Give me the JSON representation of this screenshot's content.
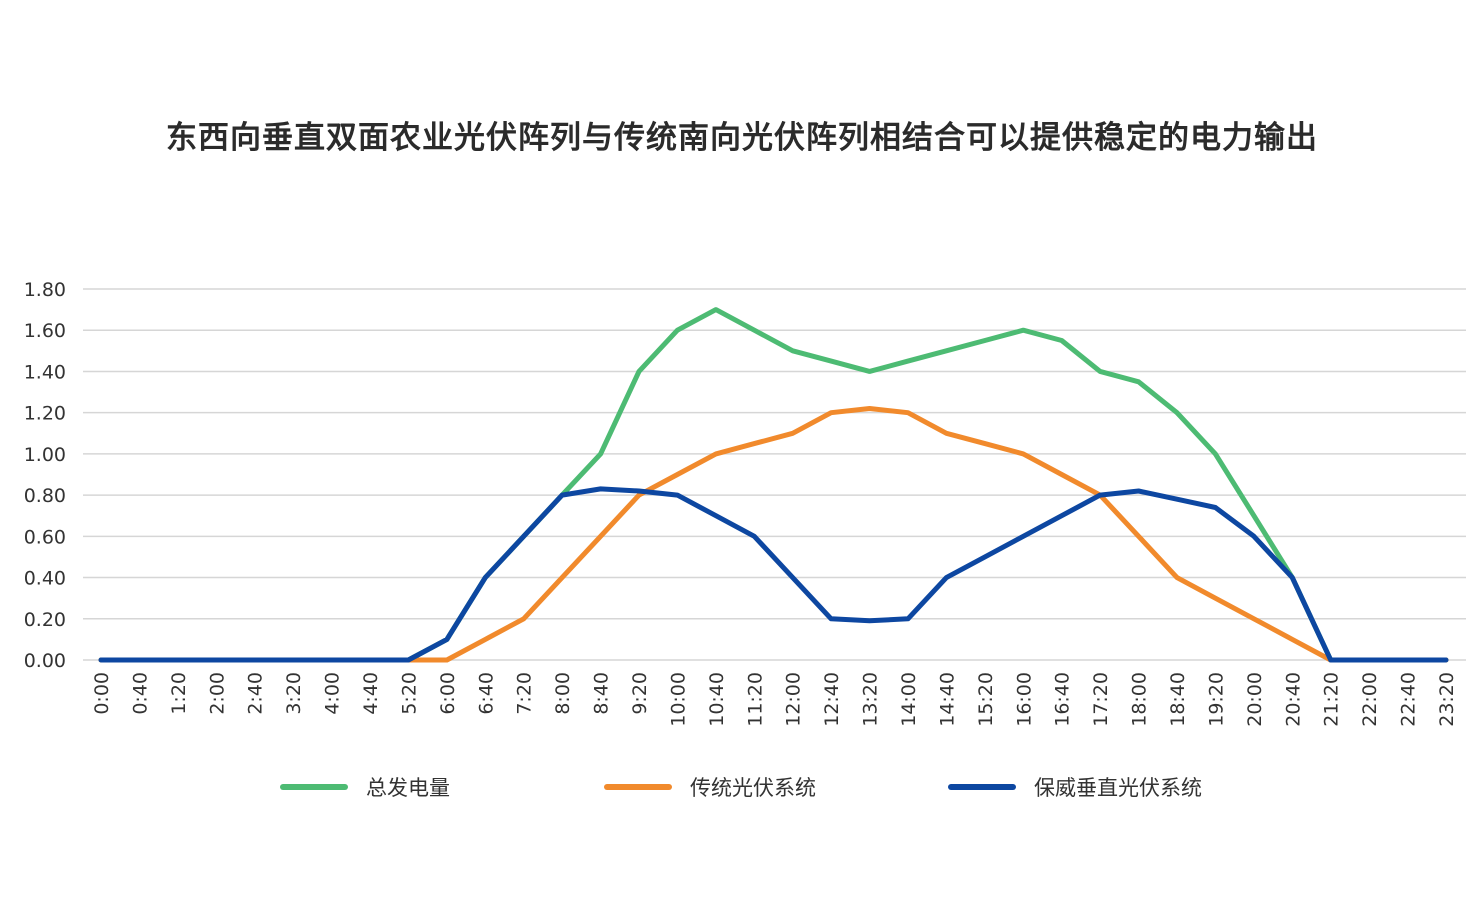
{
  "chart_data": {
    "type": "line",
    "title": "东西向垂直双面农业光伏阵列与传统南向光伏阵列相结合可以提供稳定的电力输出",
    "x": [
      "0:00",
      "0:40",
      "1:20",
      "2:00",
      "2:40",
      "3:20",
      "4:00",
      "4:40",
      "5:20",
      "6:00",
      "6:40",
      "7:20",
      "8:00",
      "8:40",
      "9:20",
      "10:00",
      "10:40",
      "11:20",
      "12:00",
      "12:40",
      "13:20",
      "14:00",
      "14:40",
      "15:20",
      "16:00",
      "16:40",
      "17:20",
      "18:00",
      "18:40",
      "19:20",
      "20:00",
      "20:40",
      "21:20",
      "22:00",
      "22:40",
      "23:20"
    ],
    "y_ticks": [
      "0.00",
      "0.20",
      "0.40",
      "0.60",
      "0.80",
      "1.00",
      "1.20",
      "1.40",
      "1.60",
      "1.80"
    ],
    "ylim": [
      0,
      1.8
    ],
    "grid": true,
    "legend_position": "bottom",
    "series": [
      {
        "name": "总发电量",
        "color": "#4dbb73",
        "values": [
          0,
          0,
          0,
          0,
          0,
          0,
          0,
          0,
          0,
          0.1,
          0.4,
          0.6,
          0.8,
          1.0,
          1.4,
          1.6,
          1.7,
          1.6,
          1.5,
          1.45,
          1.4,
          1.45,
          1.5,
          1.55,
          1.6,
          1.55,
          1.4,
          1.35,
          1.2,
          1.0,
          0.7,
          0.4,
          0,
          0,
          0,
          0
        ]
      },
      {
        "name": "传统光伏系统",
        "color": "#f18a2c",
        "values": [
          0,
          0,
          0,
          0,
          0,
          0,
          0,
          0,
          0,
          0,
          0.1,
          0.2,
          0.4,
          0.6,
          0.8,
          0.9,
          1.0,
          1.05,
          1.1,
          1.2,
          1.22,
          1.2,
          1.1,
          1.05,
          1.0,
          0.9,
          0.8,
          0.6,
          0.4,
          0.3,
          0.2,
          0.1,
          0,
          0,
          0,
          0
        ]
      },
      {
        "name": "保威垂直光伏系统",
        "color": "#0d47a1",
        "values": [
          0,
          0,
          0,
          0,
          0,
          0,
          0,
          0,
          0,
          0.1,
          0.4,
          0.6,
          0.8,
          0.83,
          0.82,
          0.8,
          0.7,
          0.6,
          0.4,
          0.2,
          0.19,
          0.2,
          0.4,
          0.5,
          0.6,
          0.7,
          0.8,
          0.82,
          0.78,
          0.74,
          0.6,
          0.4,
          0,
          0,
          0,
          0
        ]
      }
    ]
  }
}
